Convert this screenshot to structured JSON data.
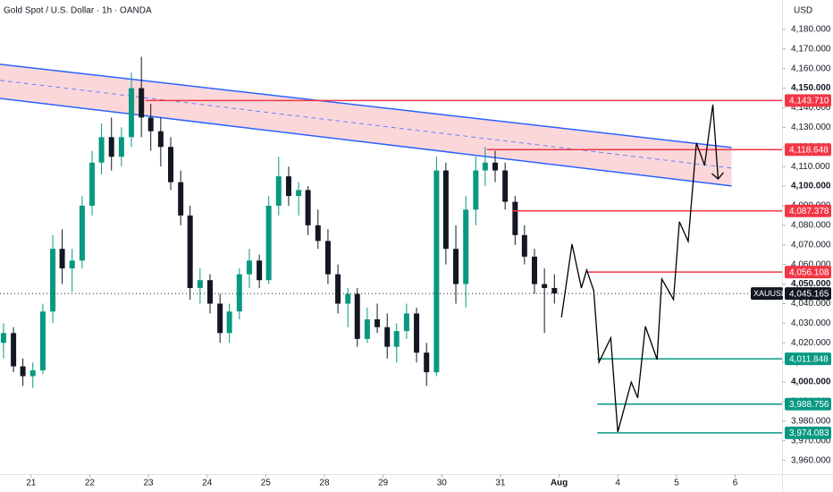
{
  "chart_data": {
    "type": "candlestick",
    "title": "Gold Spot / U.S. Dollar · 1h · OANDA",
    "currency": "USD",
    "xlim": [
      -0.53,
      12.8
    ],
    "ylim": [
      3953,
      4195
    ],
    "xticks": [
      {
        "value": 0,
        "label": "21"
      },
      {
        "value": 1,
        "label": "22"
      },
      {
        "value": 2,
        "label": "23"
      },
      {
        "value": 3,
        "label": "24"
      },
      {
        "value": 4,
        "label": "25"
      },
      {
        "value": 5,
        "label": "28"
      },
      {
        "value": 6,
        "label": "29"
      },
      {
        "value": 7,
        "label": "30"
      },
      {
        "value": 8,
        "label": "31"
      },
      {
        "value": 9,
        "label": "Aug"
      },
      {
        "value": 10,
        "label": "4"
      },
      {
        "value": 11,
        "label": "5"
      },
      {
        "value": 12,
        "label": "6"
      }
    ],
    "yticks": [
      {
        "value": 3960,
        "label": "3,960.000"
      },
      {
        "value": 3970,
        "label": "3,970.000"
      },
      {
        "value": 3980,
        "label": "3,980.000"
      },
      {
        "value": 3990,
        "label": "3,990.000"
      },
      {
        "value": 4000,
        "label": "4,000.000"
      },
      {
        "value": 4010,
        "label": "4,010.000"
      },
      {
        "value": 4020,
        "label": "4,020.000"
      },
      {
        "value": 4030,
        "label": "4,030.000"
      },
      {
        "value": 4040,
        "label": "4,040.000"
      },
      {
        "value": 4050,
        "label": "4,050.000"
      },
      {
        "value": 4060,
        "label": "4,060.000"
      },
      {
        "value": 4070,
        "label": "4,070.000"
      },
      {
        "value": 4080,
        "label": "4,080.000"
      },
      {
        "value": 4090,
        "label": "4,090.000"
      },
      {
        "value": 4100,
        "label": "4,100.000"
      },
      {
        "value": 4110,
        "label": "4,110.000"
      },
      {
        "value": 4120,
        "label": "4,120.000"
      },
      {
        "value": 4130,
        "label": "4,130.000"
      },
      {
        "value": 4140,
        "label": "4,140.000"
      },
      {
        "value": 4150,
        "label": "4,150.000"
      },
      {
        "value": 4160,
        "label": "4,160.000"
      },
      {
        "value": 4170,
        "label": "4,170.000"
      },
      {
        "value": 4180,
        "label": "4,180.000"
      }
    ],
    "emphasized_yticks": [
      4000,
      4050,
      4100,
      4150
    ],
    "up_color": "#089981",
    "down_color": "#131722",
    "x": [
      -0.47,
      -0.3,
      -0.14,
      0.03,
      0.2,
      0.37,
      0.53,
      0.7,
      0.87,
      1.04,
      1.2,
      1.37,
      1.54,
      1.71,
      1.88,
      2.04,
      2.21,
      2.38,
      2.55,
      2.71,
      2.88,
      3.05,
      3.22,
      3.38,
      3.55,
      3.72,
      3.89,
      4.05,
      4.22,
      4.39,
      4.56,
      4.72,
      4.89,
      5.06,
      5.23,
      5.4,
      5.56,
      5.73,
      5.9,
      6.07,
      6.23,
      6.4,
      6.57,
      6.74,
      6.91,
      7.07,
      7.24,
      7.41,
      7.58,
      7.74,
      7.91,
      8.08,
      8.25,
      8.41,
      8.58,
      8.75,
      8.92
    ],
    "open": [
      4020,
      4025,
      4008,
      4003,
      4006,
      4036,
      4068,
      4058,
      4062,
      4090,
      4112,
      4125,
      4115,
      4125,
      4150,
      4135,
      4128,
      4120,
      4102,
      4085,
      4048,
      4052,
      4040,
      4025,
      4036,
      4055,
      4062,
      4052,
      4090,
      4105,
      4095,
      4098,
      4080,
      4072,
      4055,
      4040,
      4045,
      4022,
      4032,
      4028,
      4018,
      4026,
      4035,
      4015,
      4005,
      4108,
      4068,
      4050,
      4088,
      4108,
      4112,
      4108,
      4092,
      4075,
      4064,
      4050,
      4048
    ],
    "high": [
      4030,
      4028,
      4012,
      4010,
      4040,
      4075,
      4078,
      4068,
      4095,
      4118,
      4132,
      4135,
      4130,
      4158,
      4166,
      4142,
      4135,
      4125,
      4108,
      4090,
      4058,
      4055,
      4045,
      4040,
      4058,
      4068,
      4065,
      4095,
      4115,
      4110,
      4102,
      4100,
      4088,
      4078,
      4060,
      4048,
      4048,
      4038,
      4040,
      4035,
      4030,
      4040,
      4038,
      4020,
      4115,
      4112,
      4080,
      4095,
      4115,
      4120,
      4118,
      4112,
      4095,
      4080,
      4068,
      4058,
      4055
    ],
    "low": [
      4012,
      4005,
      3998,
      3997,
      4004,
      4030,
      4050,
      4046,
      4058,
      4085,
      4106,
      4108,
      4110,
      4120,
      4125,
      4118,
      4110,
      4098,
      4080,
      4042,
      4040,
      4035,
      4020,
      4020,
      4032,
      4048,
      4048,
      4050,
      4085,
      4090,
      4085,
      4075,
      4068,
      4050,
      4035,
      4028,
      4018,
      4020,
      4025,
      4012,
      4010,
      4022,
      4010,
      3998,
      4003,
      4060,
      4040,
      4038,
      4080,
      4100,
      4102,
      4088,
      4070,
      4060,
      4045,
      4025,
      4040
    ],
    "close": [
      4025,
      4008,
      4003,
      4006,
      4036,
      4068,
      4058,
      4062,
      4090,
      4112,
      4125,
      4115,
      4125,
      4150,
      4135,
      4128,
      4120,
      4102,
      4085,
      4048,
      4052,
      4040,
      4025,
      4036,
      4055,
      4062,
      4052,
      4090,
      4105,
      4095,
      4098,
      4080,
      4072,
      4055,
      4040,
      4045,
      4022,
      4032,
      4028,
      4018,
      4026,
      4035,
      4015,
      4005,
      4108,
      4068,
      4050,
      4088,
      4108,
      4112,
      4108,
      4092,
      4075,
      4064,
      4050,
      4048,
      4045.165
    ],
    "channel": {
      "x": [
        -0.53,
        11.94
      ],
      "upper": [
        4162.2,
        4119.7
      ],
      "lower": [
        4144.8,
        4100.1
      ],
      "middle": [
        4154,
        4109.2
      ],
      "line_color": "#2962ff",
      "fill": "rgba(242,54,69,0.2)"
    },
    "forecast": {
      "color": "#000000",
      "x": [
        9.04,
        9.22,
        9.38,
        9.47,
        9.59,
        9.68,
        9.88,
        10.0,
        10.23,
        10.34,
        10.47,
        10.67,
        10.75,
        10.95,
        11.05,
        11.2,
        11.34,
        11.48,
        11.62,
        11.71
      ],
      "values": [
        4033.0,
        4070.4,
        4048.0,
        4057.2,
        4046.7,
        4010.1,
        4022.5,
        3974.5,
        3999.9,
        3991.9,
        4028.4,
        4011.5,
        4052.6,
        4042.1,
        4081.8,
        4071.8,
        4122.0,
        4110.6,
        4141.6,
        4103.7
      ]
    },
    "price_lines": [
      {
        "value": 4143.71,
        "label": "4,143.710",
        "color": "#f23645",
        "start": 1.95
      },
      {
        "value": 4118.648,
        "label": "4,118.648",
        "color": "#f23645",
        "start": 7.77
      },
      {
        "value": 4087.378,
        "label": "4,087.378",
        "color": "#f23645",
        "start": 8.2
      },
      {
        "value": 4056.108,
        "label": "4,056.108",
        "color": "#f23645",
        "start": 9.45
      },
      {
        "value": 4011.848,
        "label": "4,011.848",
        "color": "#089981",
        "start": 9.65
      },
      {
        "value": 3988.756,
        "label": "3,988.756",
        "color": "#089981",
        "start": 9.65
      },
      {
        "value": 3974.083,
        "label": "3,974.083",
        "color": "#089981",
        "start": 9.65
      }
    ],
    "last_price": {
      "symbol": "XAUUSD",
      "value": 4045.165,
      "label": "4,045.165",
      "color": "#131722"
    }
  }
}
